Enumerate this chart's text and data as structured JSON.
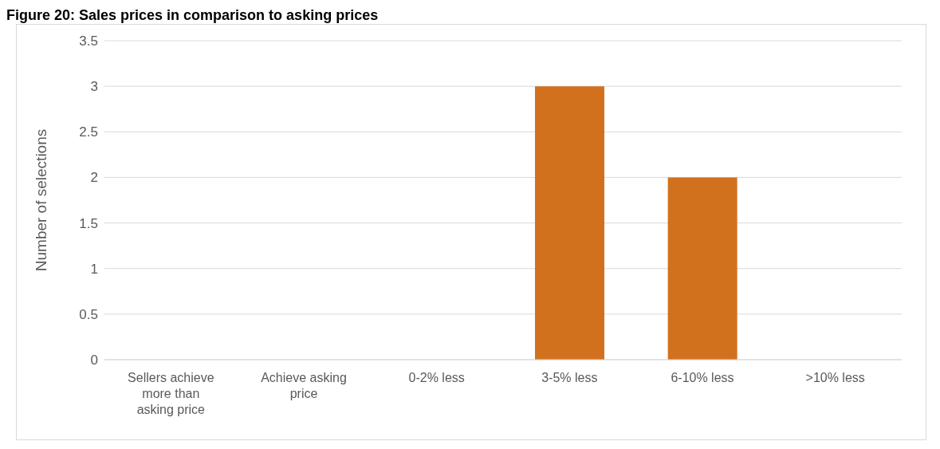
{
  "chart_data": {
    "type": "bar",
    "title": "Figure 20: Sales prices in comparison to asking prices",
    "ylabel": "Number of selections",
    "categories": [
      "Sellers achieve more than asking price",
      "Achieve asking price",
      "0-2% less",
      "3-5% less",
      "6-10% less",
      ">10% less"
    ],
    "values": [
      0,
      0,
      0,
      3,
      2,
      0
    ],
    "color": "#d2711d",
    "ylim": [
      0,
      3.5
    ],
    "yticks": [
      0,
      0.5,
      1,
      1.5,
      2,
      2.5,
      3,
      3.5
    ],
    "grid": "y",
    "legend": false
  }
}
